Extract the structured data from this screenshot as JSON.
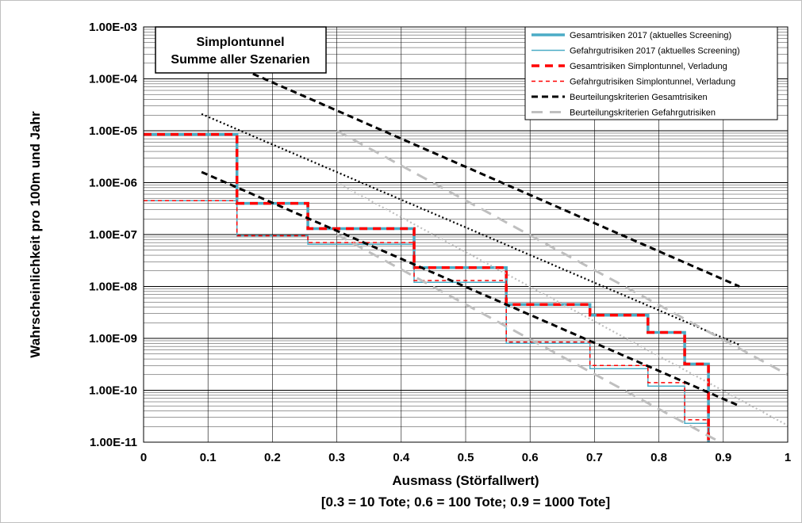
{
  "chart_data": {
    "type": "line",
    "title_box": [
      "Simplontunnel",
      "Summe aller Szenarien"
    ],
    "xlabel": [
      "Ausmass (Störfallwert)",
      "[0.3 = 10 Tote; 0.6 = 100 Tote; 0.9 = 1000 Tote]"
    ],
    "ylabel": "Wahrscheinlichkeit pro 100m und Jahr",
    "xlim": [
      0,
      1
    ],
    "ylim": [
      1e-11,
      0.001
    ],
    "y_scale": "log",
    "x_ticks": [
      "0",
      "0.1",
      "0.2",
      "0.3",
      "0.4",
      "0.5",
      "0.6",
      "0.7",
      "0.8",
      "0.9",
      "1"
    ],
    "y_ticks": [
      "1.00E-11",
      "1.00E-10",
      "1.00E-09",
      "1.00E-08",
      "1.00E-07",
      "1.00E-06",
      "1.00E-05",
      "1.00E-04",
      "1.00E-03"
    ],
    "grid": "on",
    "legend_position": "top-right",
    "colors": {
      "blue": "#4bacc6",
      "red": "#ff0000",
      "black": "#000000",
      "grey": "#bfbfbf"
    },
    "series": [
      {
        "name": "Gesamtrisiken 2017 (aktuelles Screening)",
        "style": "solid-thick",
        "color": "#4bacc6",
        "kind": "step",
        "points": [
          [
            0,
            8.5e-06
          ],
          [
            0.145,
            8.5e-06
          ],
          [
            0.145,
            4e-07
          ],
          [
            0.255,
            4e-07
          ],
          [
            0.255,
            1.3e-07
          ],
          [
            0.42,
            1.3e-07
          ],
          [
            0.42,
            2.3e-08
          ],
          [
            0.563,
            2.3e-08
          ],
          [
            0.563,
            4.5e-09
          ],
          [
            0.693,
            4.5e-09
          ],
          [
            0.693,
            2.8e-09
          ],
          [
            0.783,
            2.8e-09
          ],
          [
            0.783,
            1.3e-09
          ],
          [
            0.84,
            1.3e-09
          ],
          [
            0.84,
            3.2e-10
          ],
          [
            0.877,
            3.2e-10
          ],
          [
            0.877,
            1e-11
          ]
        ]
      },
      {
        "name": "Gefahrgutrisiken 2017 (aktuelles Screening)",
        "style": "solid-thin",
        "color": "#4bacc6",
        "kind": "step",
        "points": [
          [
            0,
            4.5e-07
          ],
          [
            0.145,
            4.5e-07
          ],
          [
            0.145,
            9.5e-08
          ],
          [
            0.255,
            9.5e-08
          ],
          [
            0.255,
            6.5e-08
          ],
          [
            0.42,
            6.5e-08
          ],
          [
            0.42,
            1.2e-08
          ],
          [
            0.563,
            1.2e-08
          ],
          [
            0.563,
            8e-10
          ],
          [
            0.693,
            8e-10
          ],
          [
            0.693,
            2.6e-10
          ],
          [
            0.783,
            2.6e-10
          ],
          [
            0.783,
            1.2e-10
          ],
          [
            0.84,
            1.2e-10
          ],
          [
            0.84,
            2.3e-11
          ],
          [
            0.877,
            2.3e-11
          ],
          [
            0.877,
            1e-11
          ]
        ]
      },
      {
        "name": "Gesamtrisiken Simplontunnel, Verladung",
        "style": "dashed-thick",
        "color": "#ff0000",
        "kind": "step",
        "points": [
          [
            0,
            8.5e-06
          ],
          [
            0.145,
            8.5e-06
          ],
          [
            0.145,
            4e-07
          ],
          [
            0.255,
            4e-07
          ],
          [
            0.255,
            1.3e-07
          ],
          [
            0.42,
            1.3e-07
          ],
          [
            0.42,
            2.3e-08
          ],
          [
            0.563,
            2.3e-08
          ],
          [
            0.563,
            4.5e-09
          ],
          [
            0.693,
            4.5e-09
          ],
          [
            0.693,
            2.8e-09
          ],
          [
            0.783,
            2.8e-09
          ],
          [
            0.783,
            1.3e-09
          ],
          [
            0.84,
            1.3e-09
          ],
          [
            0.84,
            3.2e-10
          ],
          [
            0.877,
            3.2e-10
          ],
          [
            0.877,
            1e-11
          ]
        ]
      },
      {
        "name": "Gefahrgutrisiken Simplontunnel, Verladung",
        "style": "dashed-thin",
        "color": "#ff0000",
        "kind": "step",
        "points": [
          [
            0,
            4.5e-07
          ],
          [
            0.145,
            4.5e-07
          ],
          [
            0.145,
            9.5e-08
          ],
          [
            0.255,
            9.5e-08
          ],
          [
            0.255,
            7e-08
          ],
          [
            0.42,
            7e-08
          ],
          [
            0.42,
            1.3e-08
          ],
          [
            0.563,
            1.3e-08
          ],
          [
            0.563,
            8.5e-10
          ],
          [
            0.693,
            8.5e-10
          ],
          [
            0.693,
            3e-10
          ],
          [
            0.783,
            3e-10
          ],
          [
            0.783,
            1.4e-10
          ],
          [
            0.84,
            1.4e-10
          ],
          [
            0.84,
            2.7e-11
          ],
          [
            0.877,
            2.7e-11
          ],
          [
            0.877,
            1e-11
          ]
        ]
      },
      {
        "name": "Beurteilungskriterien Gesamtrisiken",
        "style": "dashed-black",
        "color": "#000000",
        "kind": "line",
        "points": [
          [
            0.155,
            0.00015
          ],
          [
            0.925,
            1e-08
          ]
        ]
      },
      {
        "name": "",
        "style": "dotted-black",
        "color": "#000000",
        "kind": "line",
        "points": [
          [
            0.09,
            2.1e-05
          ],
          [
            0.925,
            7.5e-10
          ]
        ]
      },
      {
        "name": "",
        "style": "dashed-black",
        "color": "#000000",
        "kind": "line",
        "points": [
          [
            0.09,
            1.6e-06
          ],
          [
            0.925,
            5e-11
          ]
        ]
      },
      {
        "name": "Beurteilungskriterien Gefahrgutrisiken",
        "style": "dashed-grey",
        "color": "#bfbfbf",
        "kind": "line",
        "points": [
          [
            0.3,
            1e-05
          ],
          [
            1,
            2e-10
          ]
        ]
      },
      {
        "name": "",
        "style": "dotted-grey",
        "color": "#bfbfbf",
        "kind": "line",
        "points": [
          [
            0.3,
            1e-06
          ],
          [
            1,
            2.1e-11
          ]
        ]
      },
      {
        "name": "",
        "style": "dashed-grey",
        "color": "#bfbfbf",
        "kind": "line",
        "points": [
          [
            0.3,
            1e-07
          ],
          [
            0.895,
            1e-11
          ]
        ]
      }
    ]
  }
}
